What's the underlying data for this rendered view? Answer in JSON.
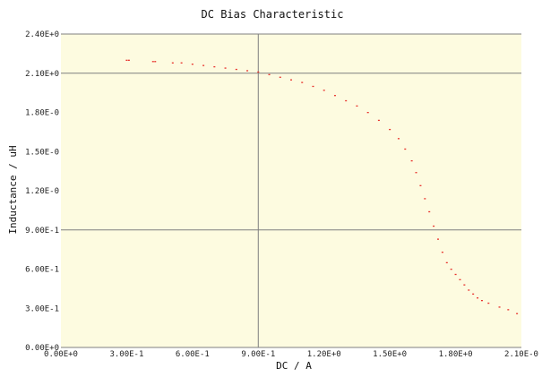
{
  "chart_data": {
    "type": "scatter",
    "title": "DC Bias Characteristic",
    "xlabel": "DC / A",
    "ylabel": "Inductance / uH",
    "xlim": [
      0,
      2.1
    ],
    "ylim": [
      0,
      2.4
    ],
    "xticks": [
      0,
      0.3,
      0.6,
      0.9,
      1.2,
      1.5,
      1.8,
      2.1
    ],
    "yticks": [
      0,
      0.3,
      0.6,
      0.9,
      1.2,
      1.5,
      1.8,
      2.1,
      2.4
    ],
    "x_tick_labels": [
      "0.00E+0",
      "3.00E-1",
      "6.00E-1",
      "9.00E-1",
      "1.20E+0",
      "1.50E+0",
      "1.80E+0",
      "2.10E-0"
    ],
    "y_tick_labels": [
      "0.00E+0",
      "3.00E-1",
      "6.00E-1",
      "9.00E-1",
      "1.20E-0",
      "1.50E-0",
      "1.80E-0",
      "2.10E+0",
      "2.40E+0"
    ],
    "grid_lines": {
      "x": [
        0.9
      ],
      "y": [
        0.9,
        2.1
      ]
    },
    "background_color": "#fdfbe0",
    "grid_color": "#7f7f7f",
    "series": [
      {
        "color": "#e8322c",
        "x": [
          0.3,
          0.31,
          0.42,
          0.43,
          0.51,
          0.55,
          0.6,
          0.65,
          0.7,
          0.75,
          0.8,
          0.85,
          0.9,
          0.95,
          1.0,
          1.05,
          1.1,
          1.15,
          1.2,
          1.25,
          1.3,
          1.35,
          1.4,
          1.45,
          1.5,
          1.54,
          1.57,
          1.6,
          1.62,
          1.64,
          1.66,
          1.68,
          1.7,
          1.72,
          1.74,
          1.76,
          1.78,
          1.8,
          1.82,
          1.84,
          1.86,
          1.88,
          1.9,
          1.92,
          1.95,
          2.0,
          2.04,
          2.08
        ],
        "y": [
          2.2,
          2.2,
          2.19,
          2.19,
          2.18,
          2.18,
          2.17,
          2.16,
          2.15,
          2.14,
          2.13,
          2.12,
          2.11,
          2.09,
          2.07,
          2.05,
          2.03,
          2.0,
          1.97,
          1.93,
          1.89,
          1.85,
          1.8,
          1.74,
          1.67,
          1.6,
          1.52,
          1.43,
          1.34,
          1.24,
          1.14,
          1.04,
          0.93,
          0.83,
          0.73,
          0.65,
          0.6,
          0.56,
          0.52,
          0.48,
          0.44,
          0.41,
          0.38,
          0.36,
          0.34,
          0.31,
          0.29,
          0.26
        ]
      }
    ]
  }
}
